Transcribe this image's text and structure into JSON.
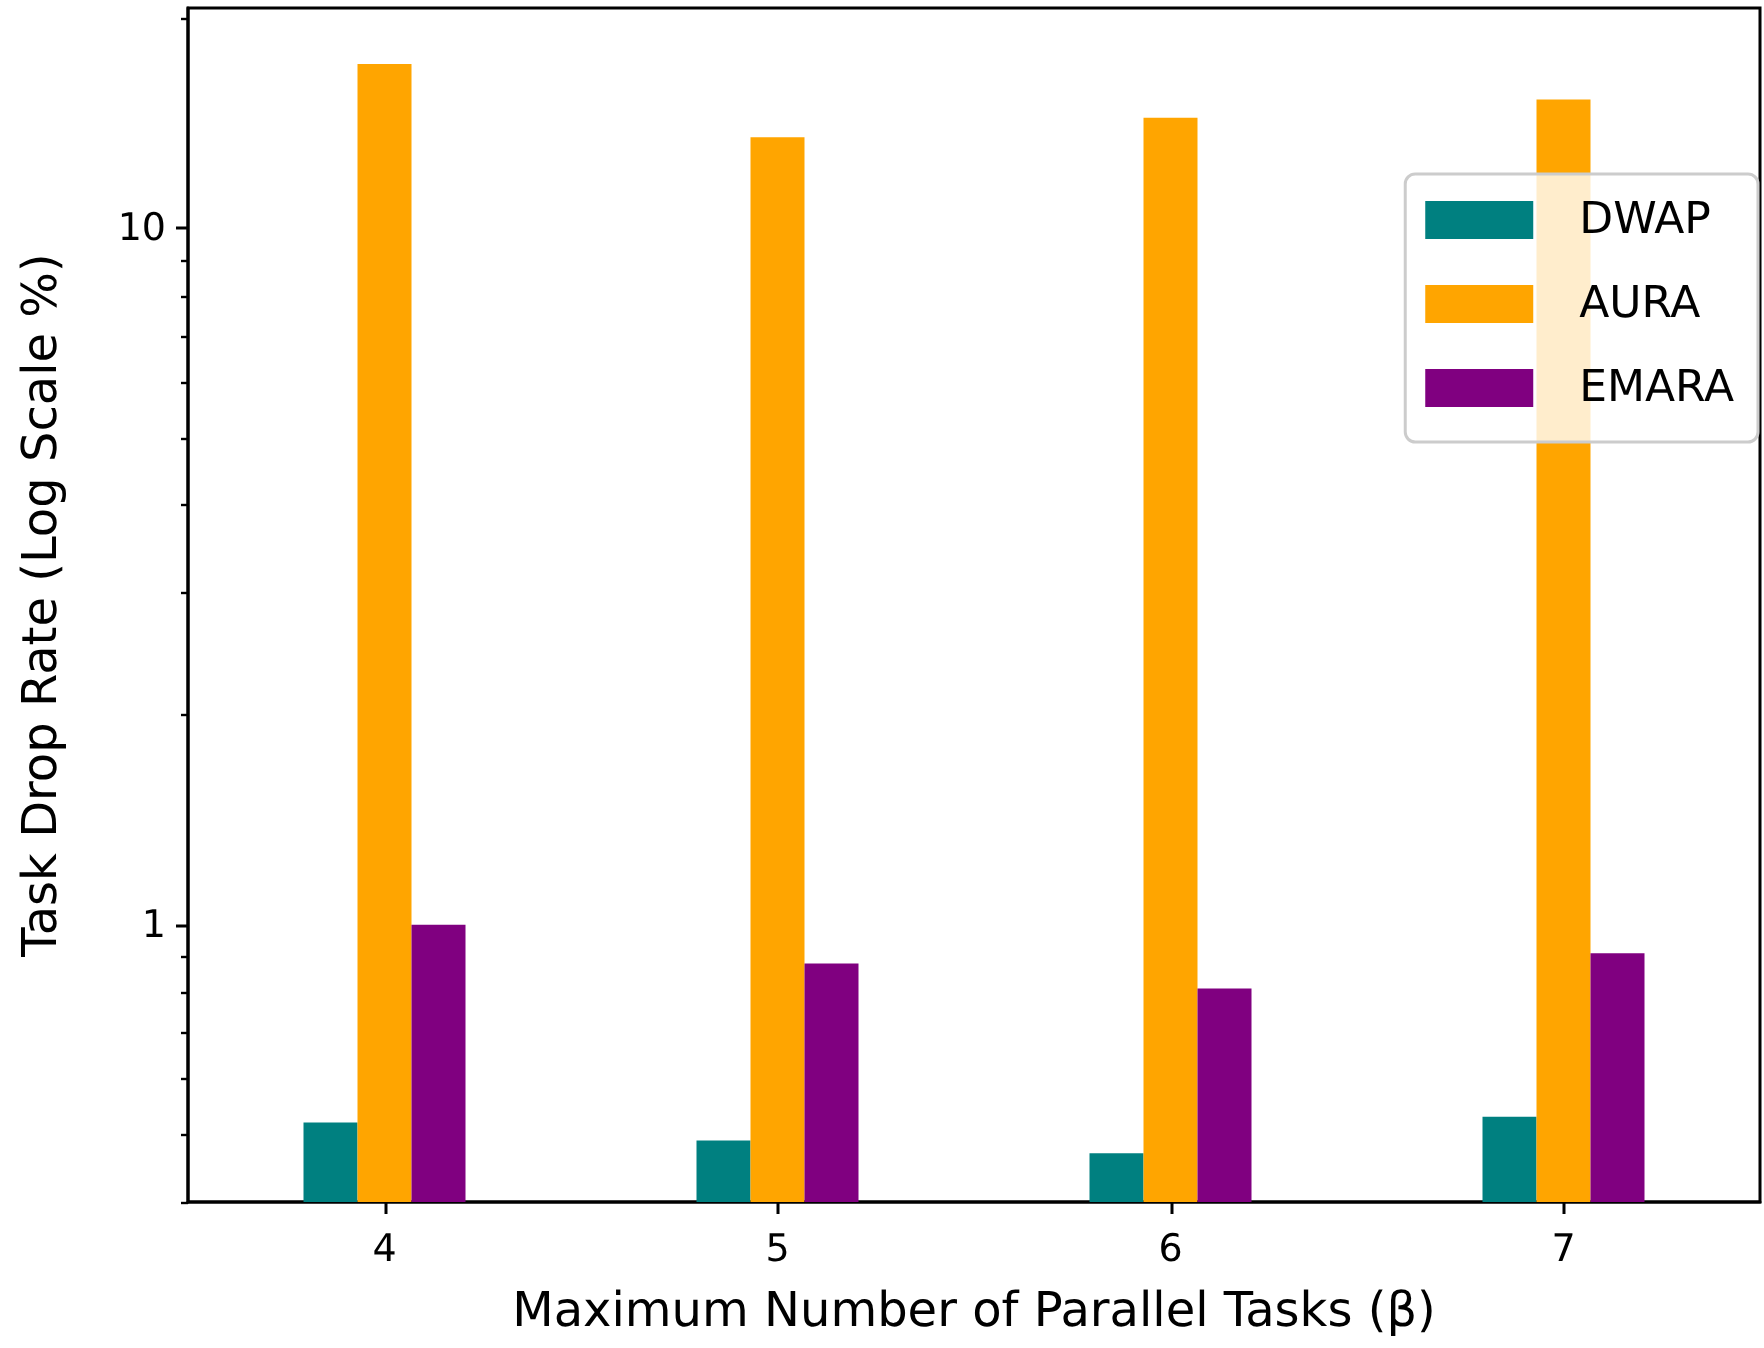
{
  "chart_data": {
    "type": "bar",
    "xlabel": "Maximum Number of Parallel Tasks (β)",
    "ylabel": "Task Drop Rate (Log Scale %)",
    "categories": [
      "4",
      "5",
      "6",
      "7"
    ],
    "series": [
      {
        "name": "DWAP",
        "color": "#008080",
        "values": [
          0.52,
          0.49,
          0.47,
          0.53
        ]
      },
      {
        "name": "AURA",
        "color": "#ffa500",
        "values": [
          17.2,
          13.5,
          14.4,
          15.3
        ]
      },
      {
        "name": "EMARA",
        "color": "#800080",
        "values": [
          1.0,
          0.88,
          0.81,
          0.91
        ]
      }
    ],
    "log": true,
    "ylim": [
      0.4,
      20.7
    ],
    "yticks": [
      {
        "value": 0.4,
        "label": null
      },
      {
        "value": 0.5,
        "label": null
      },
      {
        "value": 0.6,
        "label": null
      },
      {
        "value": 0.7,
        "label": null
      },
      {
        "value": 0.8,
        "label": null
      },
      {
        "value": 0.9,
        "label": null
      },
      1,
      {
        "value": 2,
        "label": null
      },
      {
        "value": 3,
        "label": null
      },
      {
        "value": 4,
        "label": null
      },
      {
        "value": 5,
        "label": null
      },
      {
        "value": 6,
        "label": null
      },
      {
        "value": 7,
        "label": null
      },
      {
        "value": 8,
        "label": null
      },
      {
        "value": 9,
        "label": null
      },
      10,
      {
        "value": 20,
        "label": null
      }
    ],
    "legend": "top right"
  }
}
